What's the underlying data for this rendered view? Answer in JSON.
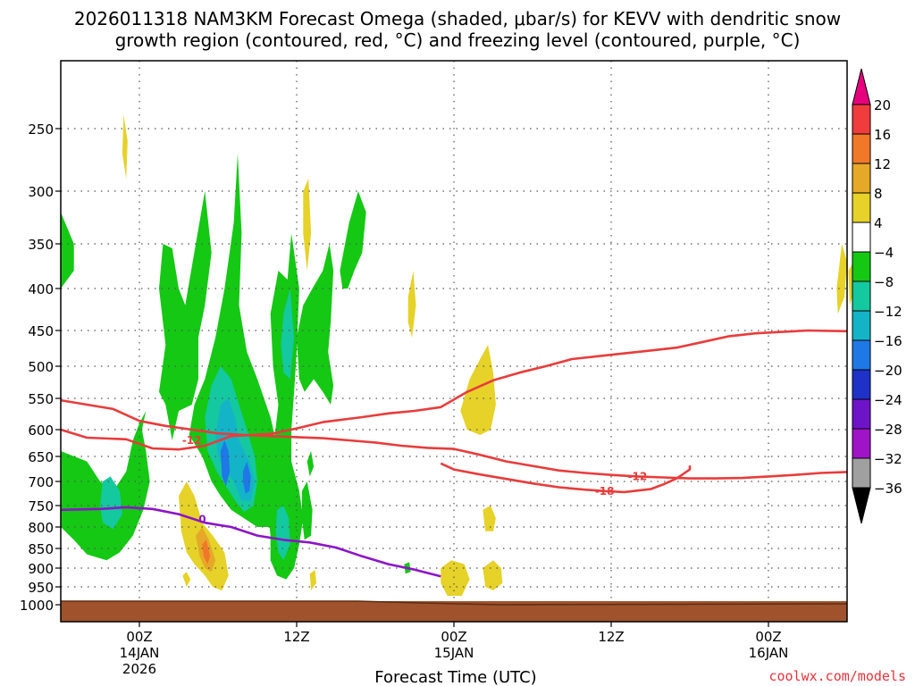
{
  "chart_data": {
    "type": "heatmap",
    "title_line1": "2026011318 NAM3KM Forecast Omega (shaded, μbar/s) for KEVV with dendritic snow",
    "title_line2": "growth region (contoured, red, °C) and freezing level (contoured, purple, °C)",
    "xlabel": "Forecast Time (UTC)",
    "credit": "coolwx.com/models",
    "y_axis": {
      "scale": "pressure",
      "ticks": [
        250,
        300,
        350,
        400,
        450,
        500,
        550,
        600,
        650,
        700,
        750,
        800,
        850,
        900,
        950,
        1000
      ],
      "range": [
        1000,
        200
      ]
    },
    "x_axis": {
      "range_hours": [
        -6,
        54
      ],
      "ticks": [
        {
          "hour": 0,
          "label1": "00Z",
          "label2": "14JAN",
          "label3": "2026"
        },
        {
          "hour": 12,
          "label1": "12Z",
          "label2": "",
          "label3": ""
        },
        {
          "hour": 24,
          "label1": "00Z",
          "label2": "15JAN",
          "label3": ""
        },
        {
          "hour": 36,
          "label1": "12Z",
          "label2": "",
          "label3": ""
        },
        {
          "hour": 48,
          "label1": "00Z",
          "label2": "16JAN",
          "label3": ""
        }
      ]
    },
    "colorbar": {
      "labels": [
        "20",
        "16",
        "12",
        "8",
        "4",
        "−4",
        "−8",
        "−12",
        "−16",
        "−20",
        "−24",
        "−28",
        "−32",
        "−36"
      ],
      "colors": [
        "#e6007e",
        "#f03c3c",
        "#f07828",
        "#e6a828",
        "#e6d228",
        "#ffffff",
        "#14c814",
        "#14c8a0",
        "#14b4c8",
        "#1e78e6",
        "#1e32c8",
        "#6e14c8",
        "#a014c8",
        "#a0a0a0",
        "#000000"
      ]
    },
    "contours": [
      {
        "type": "dendritic_lower",
        "color": "#e83c3c",
        "label": "-12",
        "points": [
          [
            -6,
            600
          ],
          [
            -4,
            615
          ],
          [
            -1,
            618
          ],
          [
            1,
            635
          ],
          [
            3,
            637
          ],
          [
            5,
            630
          ],
          [
            7,
            612
          ],
          [
            10,
            608
          ],
          [
            12,
            598
          ],
          [
            14,
            588
          ],
          [
            17,
            580
          ],
          [
            19,
            574
          ],
          [
            21,
            570
          ],
          [
            23,
            564
          ],
          [
            25,
            540
          ],
          [
            27,
            522
          ],
          [
            29,
            510
          ],
          [
            31,
            500
          ],
          [
            33,
            490
          ],
          [
            36,
            484
          ],
          [
            39,
            478
          ],
          [
            41,
            474
          ],
          [
            43,
            466
          ],
          [
            45,
            458
          ],
          [
            47,
            454
          ],
          [
            49,
            452
          ],
          [
            51,
            450
          ],
          [
            54,
            451
          ]
        ]
      },
      {
        "type": "dendritic_upper",
        "color": "#e83c3c",
        "label": "-12",
        "points": [
          [
            -6,
            553
          ],
          [
            -4,
            560
          ],
          [
            -2,
            567
          ],
          [
            0,
            586
          ],
          [
            2,
            594
          ],
          [
            4,
            600
          ],
          [
            6,
            607
          ],
          [
            8,
            610
          ],
          [
            10,
            612
          ],
          [
            12,
            614
          ],
          [
            14,
            616
          ],
          [
            16,
            620
          ],
          [
            18,
            624
          ],
          [
            20,
            630
          ],
          [
            22,
            634
          ],
          [
            24,
            636
          ],
          [
            26,
            647
          ],
          [
            28,
            660
          ],
          [
            30,
            669
          ],
          [
            32,
            678
          ],
          [
            34,
            683
          ],
          [
            36,
            687
          ],
          [
            38,
            690
          ],
          [
            40,
            692
          ],
          [
            42,
            694
          ],
          [
            44,
            694
          ],
          [
            46,
            693
          ],
          [
            48,
            690
          ],
          [
            50,
            687
          ],
          [
            52,
            683
          ],
          [
            54,
            681
          ]
        ]
      },
      {
        "type": "dendritic_inner",
        "color": "#e83c3c",
        "label": "-18",
        "points": [
          [
            23,
            664
          ],
          [
            24,
            676
          ],
          [
            26,
            686
          ],
          [
            28,
            695
          ],
          [
            30,
            704
          ],
          [
            32,
            712
          ],
          [
            34,
            717
          ],
          [
            35.5,
            720
          ],
          [
            37,
            722
          ],
          [
            39,
            716
          ],
          [
            40,
            706
          ],
          [
            41,
            694
          ],
          [
            41.5,
            685
          ],
          [
            42,
            676
          ],
          [
            42,
            668
          ]
        ]
      },
      {
        "type": "freezing_level",
        "color": "#8c14c8",
        "label": "0",
        "points": [
          [
            -6,
            760
          ],
          [
            -3,
            758
          ],
          [
            -1,
            754
          ],
          [
            1,
            758
          ],
          [
            3,
            770
          ],
          [
            5,
            790
          ],
          [
            7,
            800
          ],
          [
            9,
            820
          ],
          [
            11,
            830
          ],
          [
            13,
            836
          ],
          [
            15,
            848
          ],
          [
            17,
            870
          ],
          [
            19,
            890
          ],
          [
            21,
            904
          ],
          [
            23,
            922
          ]
        ]
      }
    ],
    "omega_regions": [
      {
        "level": "-4 to -8",
        "color": "#14c814"
      },
      {
        "level": "-8 to -12",
        "color": "#14c8a0"
      },
      {
        "level": "-12 to -16",
        "color": "#14b4c8"
      },
      {
        "level": "-16 to -20",
        "color": "#1e78e6"
      },
      {
        "level": "4 to 8",
        "color": "#e6d228"
      },
      {
        "level": "8 to 12",
        "color": "#e6a828"
      },
      {
        "level": "12 to 16",
        "color": "#f07828"
      }
    ],
    "grid": true,
    "terrain_color": "#a0522d"
  }
}
